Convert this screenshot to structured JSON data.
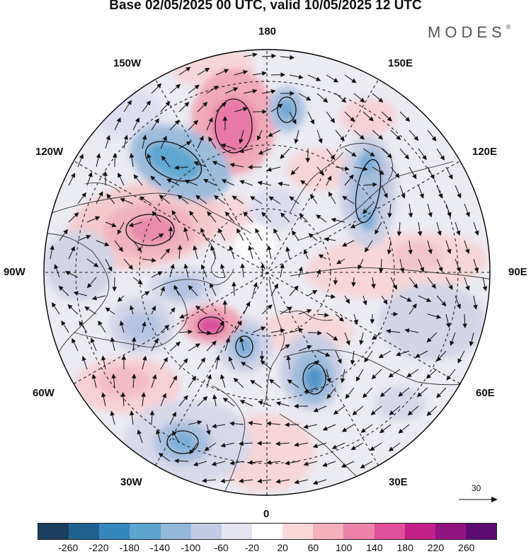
{
  "title": "Base 02/05/2025 00 UTC, valid 10/05/2025 12 UTC",
  "brand": "MODES",
  "brand_mark": "®",
  "longitude_labels": {
    "top": "180",
    "top_left": "150W",
    "top_right": "150E",
    "upper_left": "120W",
    "upper_right": "120E",
    "left": "90W",
    "right": "90E",
    "lower_left": "60W",
    "lower_right": "60E",
    "bottom_left": "30W",
    "bottom_right": "30E",
    "bottom": "0"
  },
  "reference_vector_label": "30",
  "colorbar": {
    "colors": [
      "#1b3f5e",
      "#20608f",
      "#3487bd",
      "#5ca5cf",
      "#93b9da",
      "#c4cbe4",
      "#e4e3f0",
      "#ffffff",
      "#f8d8d8",
      "#f4b0bc",
      "#ec82a8",
      "#e04f99",
      "#c31f88",
      "#92127f",
      "#5c0b73"
    ],
    "tick_labels": [
      "-260",
      "-220",
      "-180",
      "-140",
      "-100",
      "-60",
      "-20",
      "20",
      "60",
      "100",
      "140",
      "180",
      "220",
      "260"
    ]
  },
  "colors": {
    "graticule": "#222222",
    "coastline": "#333333",
    "arrow": "#111111",
    "outer_circle": "#000000"
  }
}
